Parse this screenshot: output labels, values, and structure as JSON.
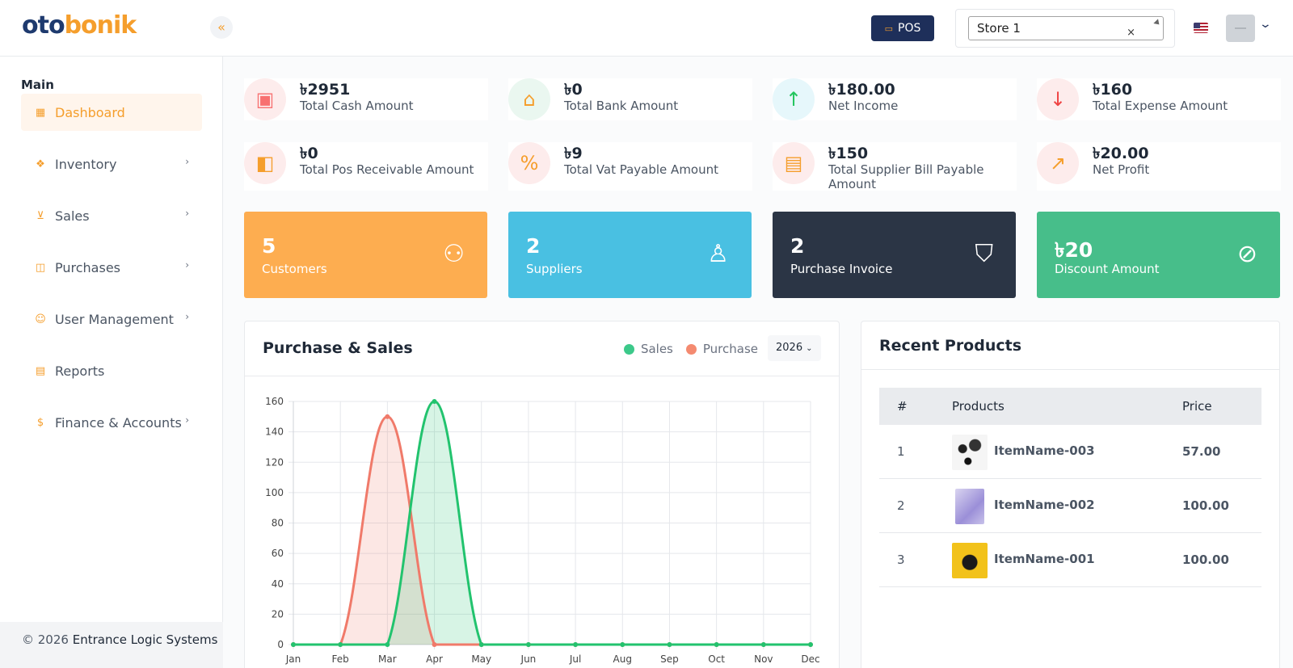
{
  "brand": {
    "part1": "oto",
    "part2": "bonik"
  },
  "header": {
    "pos_label": "POS",
    "store_value": "Store 1",
    "store_clear": "×"
  },
  "sidebar": {
    "heading": "Main",
    "items": [
      {
        "label": "Dashboard",
        "icon": "grid-icon",
        "active": true
      },
      {
        "label": "Inventory",
        "icon": "boxes-icon"
      },
      {
        "label": "Sales",
        "icon": "cart-icon"
      },
      {
        "label": "Purchases",
        "icon": "bag-icon"
      },
      {
        "label": "User Management",
        "icon": "users-icon"
      },
      {
        "label": "Reports",
        "icon": "report-icon"
      },
      {
        "label": "Finance & Accounts",
        "icon": "dollar-icon"
      }
    ],
    "footer_prefix": "© 2026",
    "footer_company": "Entrance Logic Systems"
  },
  "stats": [
    {
      "value": "৳2951",
      "label": "Total Cash Amount",
      "icon": "cash-icon",
      "color": "#f87171"
    },
    {
      "value": "৳0",
      "label": "Total Bank Amount",
      "icon": "bank-icon",
      "color": "#f59e2c"
    },
    {
      "value": "৳180.00",
      "label": "Net Income",
      "icon": "arrow-up-icon",
      "color": "#22c55e"
    },
    {
      "value": "৳160",
      "label": "Total Expense Amount",
      "icon": "arrow-down-icon",
      "color": "#ef4444"
    },
    {
      "value": "৳0",
      "label": "Total Pos Receivable Amount",
      "icon": "wallet-icon",
      "color": "#f59e2c"
    },
    {
      "value": "৳9",
      "label": "Total Vat Payable Amount",
      "icon": "percent-file-icon",
      "color": "#f59e2c"
    },
    {
      "value": "৳150",
      "label": "Total Supplier Bill Payable Amount",
      "icon": "file-icon",
      "color": "#f59e2c"
    },
    {
      "value": "৳20.00",
      "label": "Net Profit",
      "icon": "trend-up-icon",
      "color": "#f59e2c"
    }
  ],
  "summary_cards": [
    {
      "value": "5",
      "label": "Customers",
      "icon": "users-icon",
      "color": "#fdad50"
    },
    {
      "value": "2",
      "label": "Suppliers",
      "icon": "user-check-icon",
      "color": "#49c0e2"
    },
    {
      "value": "2",
      "label": "Purchase Invoice",
      "icon": "shopping-bag-icon",
      "color": "#2b3545"
    },
    {
      "value": "৳20",
      "label": "Discount Amount",
      "icon": "percent-icon",
      "color": "#47be8a"
    }
  ],
  "chart_panel": {
    "title": "Purchase & Sales",
    "year": "2026"
  },
  "chart_data": {
    "type": "area",
    "categories": [
      "Jan",
      "Feb",
      "Mar",
      "Apr",
      "May",
      "Jun",
      "Jul",
      "Aug",
      "Sep",
      "Oct",
      "Nov",
      "Dec"
    ],
    "series": [
      {
        "name": "Sales",
        "values": [
          0,
          0,
          0,
          160,
          0,
          0,
          0,
          0,
          0,
          0,
          0,
          0
        ],
        "color": "#22c36e"
      },
      {
        "name": "Purchase",
        "values": [
          0,
          0,
          150,
          0,
          0,
          0,
          0,
          0,
          0,
          0,
          0,
          0
        ],
        "color": "#f07a6a"
      }
    ],
    "ylim": [
      0,
      160
    ],
    "yticks": [
      0,
      20,
      40,
      60,
      80,
      100,
      120,
      140,
      160
    ],
    "grid": true,
    "legend": "top-right"
  },
  "recent_products": {
    "title": "Recent Products",
    "columns": [
      "#",
      "Products",
      "Price"
    ],
    "rows": [
      {
        "index": "1",
        "name": "ItemName-003",
        "price": "57.00"
      },
      {
        "index": "2",
        "name": "ItemName-002",
        "price": "100.00"
      },
      {
        "index": "3",
        "name": "ItemName-001",
        "price": "100.00"
      }
    ]
  }
}
